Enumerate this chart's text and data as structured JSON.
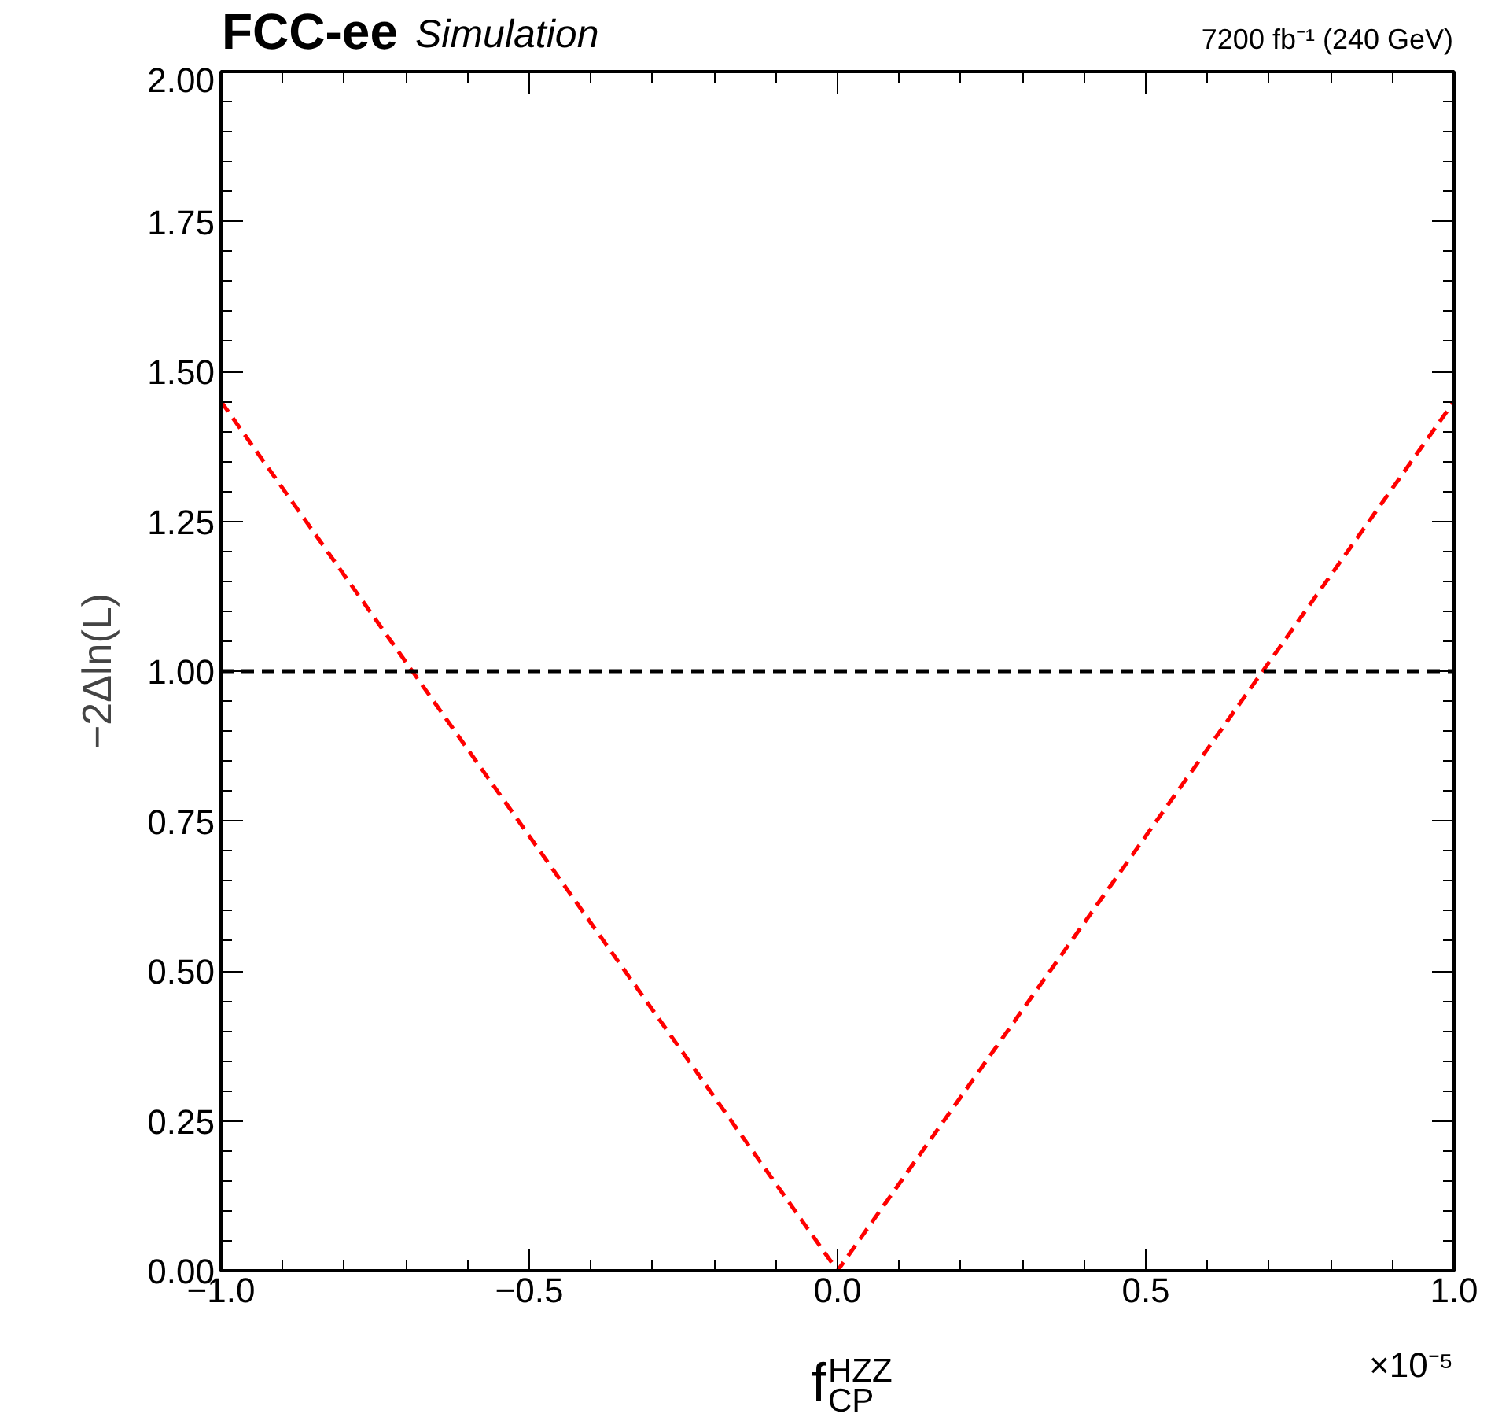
{
  "chart_data": {
    "type": "line",
    "title": "FCC-ee",
    "subtitle": "Simulation",
    "xlabel": "f$_{CP}$$^{HZZ}$",
    "ylabel": "−2Δln(L)",
    "x": [
      -1.0,
      0.0,
      1.0
    ],
    "series": [
      {
        "color": "#ff0000",
        "values": [
          1.45,
          0.0,
          1.45
        ]
      }
    ],
    "line_style": "dashed",
    "marker": "none",
    "grid": false,
    "xlim": [
      -1.0,
      1.0
    ],
    "ylim": [
      0.0,
      2.0
    ],
    "xticks": [
      {
        "value": -1.0,
        "label": "−1.0"
      },
      {
        "value": -0.5,
        "label": "−0.5"
      },
      {
        "value": 0.0,
        "label": "0.0"
      },
      {
        "value": 0.5,
        "label": "0.5"
      },
      {
        "value": 1.0,
        "label": "1.0"
      }
    ],
    "yticks": [
      {
        "value": 0.0,
        "label": "0.00"
      },
      {
        "value": 0.25,
        "label": "0.25"
      },
      {
        "value": 0.5,
        "label": "0.50"
      },
      {
        "value": 0.75,
        "label": "0.75"
      },
      {
        "value": 1.0,
        "label": "1.00"
      },
      {
        "value": 1.25,
        "label": "1.25"
      },
      {
        "value": 1.5,
        "label": "1.50"
      },
      {
        "value": 1.75,
        "label": "1.75"
      },
      {
        "value": 2.0,
        "label": "2.00"
      }
    ],
    "ref_lines": [
      {
        "axis": "y",
        "value": 1.0,
        "label": null,
        "color": "#000000",
        "line_style": "dashed"
      }
    ],
    "annotations": [
      "7200 fb⁻¹ (240 GeV)",
      "×10⁻⁵"
    ]
  }
}
